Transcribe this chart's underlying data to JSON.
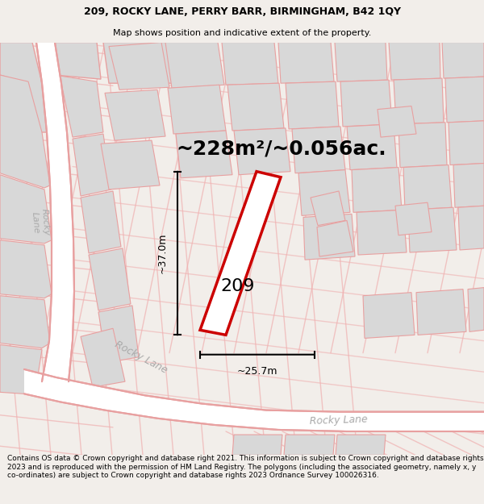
{
  "title_line1": "209, ROCKY LANE, PERRY BARR, BIRMINGHAM, B42 1QY",
  "title_line2": "Map shows position and indicative extent of the property.",
  "area_text": "~228m²/~0.056ac.",
  "label_209": "209",
  "dim_horizontal": "~25.7m",
  "dim_vertical": "~37.0m",
  "footer_text": "Contains OS data © Crown copyright and database right 2021. This information is subject to Crown copyright and database rights 2023 and is reproduced with the permission of HM Land Registry. The polygons (including the associated geometry, namely x, y co-ordinates) are subject to Crown copyright and database rights 2023 Ordnance Survey 100026316.",
  "bg_color": "#f2eeea",
  "map_bg": "#ffffff",
  "road_outline_color": "#e8a0a0",
  "property_edge_color": "#cc0000",
  "parcel_fill": "#d8d8d8",
  "parcel_edge": "#e8a0a0",
  "title_fontsize": 9,
  "subtitle_fontsize": 8,
  "area_fontsize": 18,
  "label_fontsize": 16,
  "footer_fontsize": 6.5,
  "dim_fontsize": 9,
  "road_label_color": "#aaaaaa",
  "road_label_fontsize": 9
}
